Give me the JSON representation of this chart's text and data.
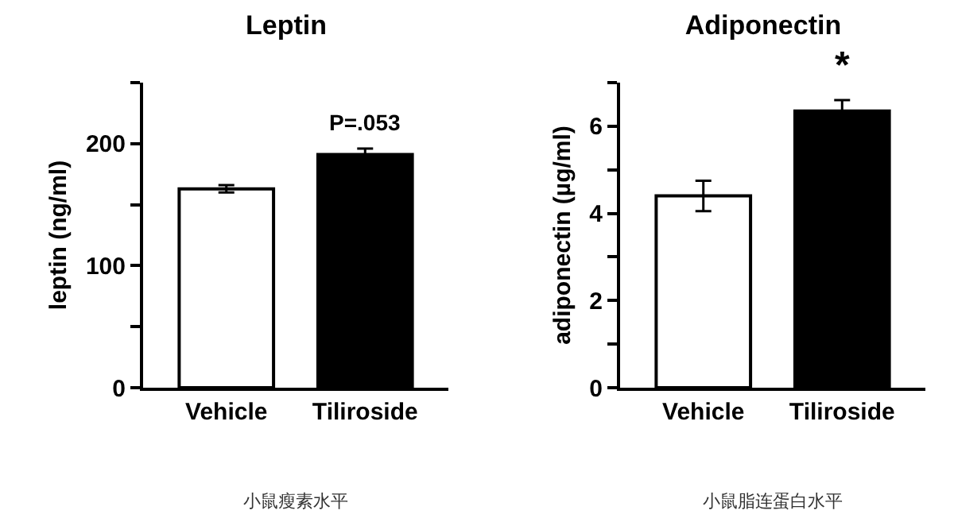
{
  "chart_data": [
    {
      "type": "bar",
      "title": "Leptin",
      "ylabel": "leptin (ng/ml)",
      "categories": [
        "Vehicle",
        "Tiliroside"
      ],
      "values": [
        163,
        191
      ],
      "errors": [
        3,
        5
      ],
      "colors": [
        "#ffffff",
        "#000000"
      ],
      "ylim": [
        0,
        250
      ],
      "yticks": [
        0,
        {
          "value": 50,
          "label": null
        },
        100,
        {
          "value": 150,
          "label": null
        },
        200,
        {
          "value": 250,
          "label": null
        }
      ],
      "annotations": [
        "P=.053",
        "小鼠瘦素水平"
      ]
    },
    {
      "type": "bar",
      "title": "Adiponectin",
      "ylabel": "adiponectin (µg/ml)",
      "categories": [
        "Vehicle",
        "Tiliroside"
      ],
      "values": [
        4.4,
        6.35
      ],
      "errors": [
        0.35,
        0.25
      ],
      "colors": [
        "#ffffff",
        "#000000"
      ],
      "ylim": [
        0,
        7
      ],
      "yticks": [
        0,
        {
          "value": 1,
          "label": null
        },
        2,
        {
          "value": 3,
          "label": null
        },
        4,
        {
          "value": 5,
          "label": null
        },
        6,
        {
          "value": 7,
          "label": null
        }
      ],
      "annotations": [
        "*",
        "小鼠脂连蛋白水平"
      ]
    }
  ]
}
